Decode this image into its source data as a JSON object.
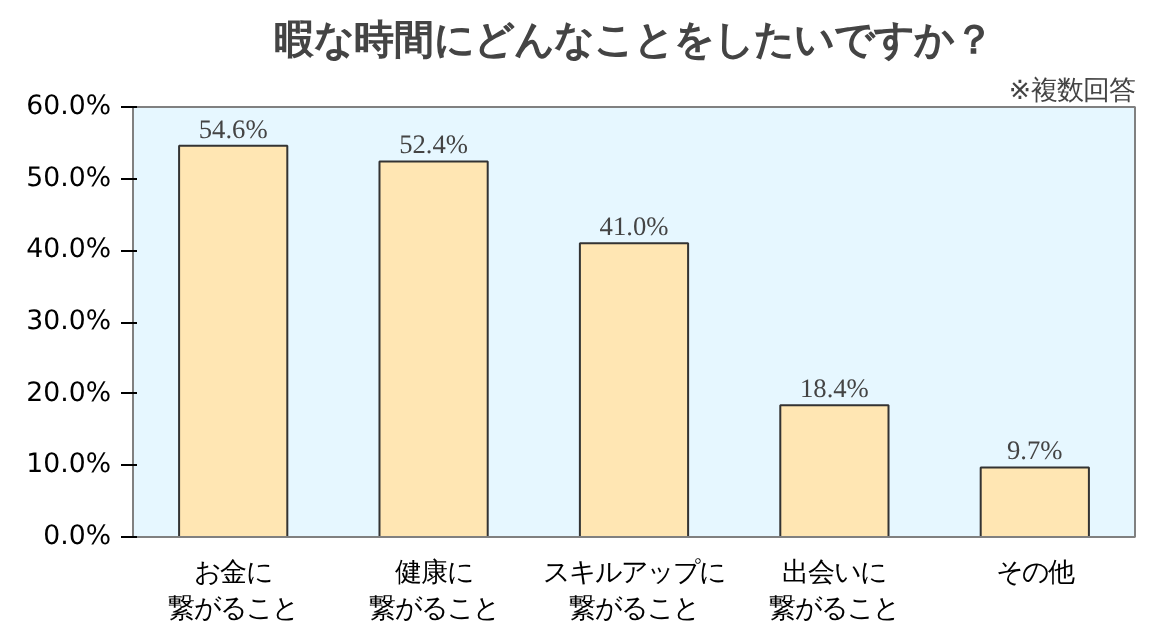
{
  "chart_data": {
    "type": "bar",
    "title": "暇な時間にどんなことをしたいですか？",
    "annotations": [
      "※複数回答"
    ],
    "categories": [
      "お金に繋がること",
      "健康に繋がること",
      "スキルアップに繋がること",
      "出会いに繋がること",
      "その他"
    ],
    "values": [
      54.6,
      52.4,
      41.0,
      18.4,
      9.7
    ],
    "value_labels": [
      "54.6%",
      "52.4%",
      "41.0%",
      "18.4%",
      "9.7%"
    ],
    "color": "#ffe6b3",
    "ylim": [
      0,
      60
    ],
    "yticks": [
      {
        "value": 0,
        "label": "0.0%"
      },
      {
        "value": 10,
        "label": "10.0%"
      },
      {
        "value": 20,
        "label": "20.0%"
      },
      {
        "value": 30,
        "label": "30.0%"
      },
      {
        "value": 40,
        "label": "40.0%"
      },
      {
        "value": 50,
        "label": "50.0%"
      },
      {
        "value": 60,
        "label": "60.0%"
      }
    ],
    "grid": false
  }
}
